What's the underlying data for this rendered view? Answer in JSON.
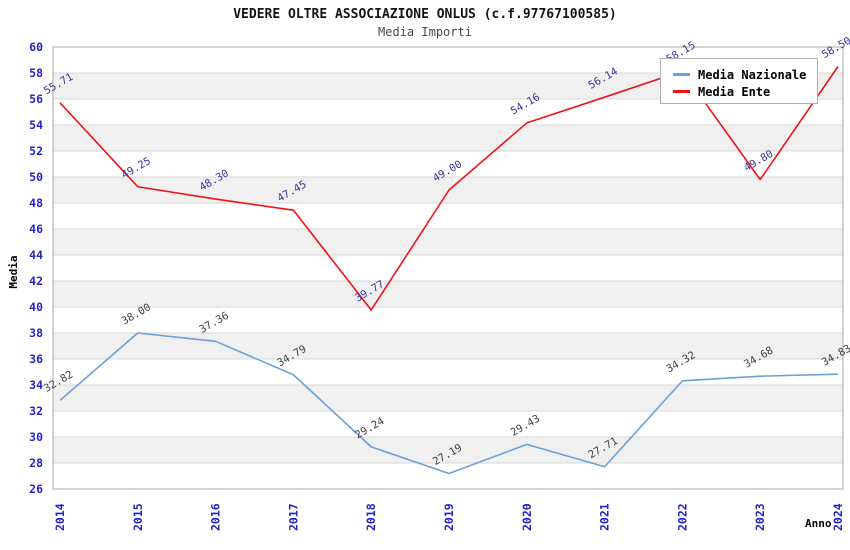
{
  "chart_data": {
    "type": "line",
    "title": "VEDERE OLTRE ASSOCIAZIONE ONLUS (c.f.97767100585)",
    "subtitle": "Media Importi",
    "xlabel": "Anno",
    "ylabel": "Media",
    "categories": [
      2014,
      2015,
      2016,
      2017,
      2018,
      2019,
      2020,
      2021,
      2022,
      2023,
      2024
    ],
    "ylim": [
      26,
      60
    ],
    "ytick_step": 2,
    "grid": "horizontal-gridlines-with-alternating-bands",
    "legend_position": "top-right-inside",
    "series": [
      {
        "name": "Media Nazionale",
        "color": "#6ca0d8",
        "label_color": "#3f3f3f",
        "values": [
          32.82,
          38.0,
          37.36,
          34.79,
          29.24,
          27.19,
          29.43,
          27.71,
          34.32,
          34.68,
          34.83
        ]
      },
      {
        "name": "Media Ente",
        "color": "#ee1414",
        "label_color": "#333399",
        "values": [
          55.71,
          49.25,
          48.3,
          47.45,
          39.77,
          49.0,
          54.16,
          56.14,
          58.15,
          49.8,
          58.5
        ]
      }
    ],
    "colors": {
      "tick_label": "#2323cb",
      "band_fill": "#f0f0f0",
      "gridline": "#d9d9d9",
      "plot_border": "#aaaaaa",
      "title": "#141414",
      "subtitle": "#4a4a4a"
    }
  }
}
